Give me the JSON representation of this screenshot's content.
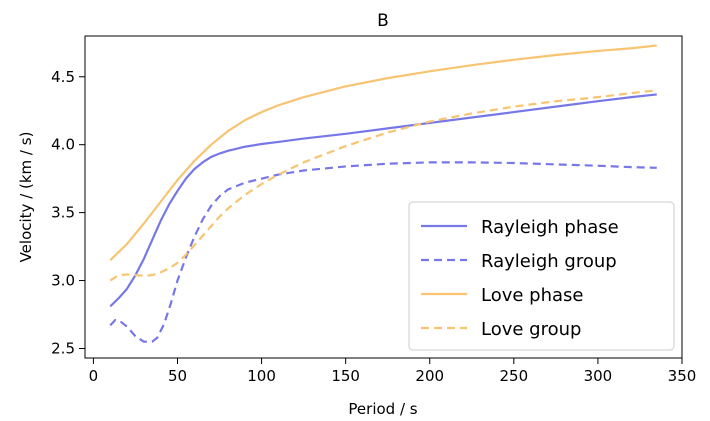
{
  "chart_data": {
    "type": "line",
    "title": "B",
    "xlabel": "Period / s",
    "ylabel": "Velocity / (km / s)",
    "xlim": [
      -5,
      350
    ],
    "ylim": [
      2.43,
      4.8
    ],
    "xticks": [
      0,
      50,
      100,
      150,
      200,
      250,
      300,
      350
    ],
    "yticks": [
      2.5,
      3.0,
      3.5,
      4.0,
      4.5
    ],
    "ytick_labels": [
      "2.5",
      "3.0",
      "3.5",
      "4.0",
      "4.5"
    ],
    "grid": false,
    "legend_position": "lower-right",
    "series": [
      {
        "name": "Rayleigh phase",
        "color": "#7777e8",
        "dash": "solid",
        "x": [
          10,
          15,
          20,
          25,
          30,
          35,
          40,
          45,
          50,
          55,
          60,
          65,
          70,
          75,
          80,
          85,
          90,
          100,
          110,
          125,
          150,
          175,
          200,
          225,
          250,
          275,
          300,
          320,
          335
        ],
        "y": [
          2.81,
          2.87,
          2.94,
          3.04,
          3.16,
          3.3,
          3.44,
          3.56,
          3.66,
          3.75,
          3.82,
          3.87,
          3.91,
          3.935,
          3.955,
          3.97,
          3.985,
          4.005,
          4.02,
          4.045,
          4.08,
          4.12,
          4.16,
          4.2,
          4.24,
          4.28,
          4.32,
          4.35,
          4.37
        ]
      },
      {
        "name": "Rayleigh group",
        "color": "#7777e8",
        "dash": "dashed",
        "x": [
          10,
          13,
          16,
          20,
          25,
          30,
          35,
          38,
          42,
          46,
          50,
          55,
          60,
          65,
          70,
          75,
          80,
          90,
          100,
          110,
          125,
          150,
          175,
          200,
          225,
          250,
          275,
          300,
          320,
          335
        ],
        "y": [
          2.67,
          2.71,
          2.7,
          2.66,
          2.59,
          2.55,
          2.55,
          2.58,
          2.68,
          2.83,
          3.0,
          3.17,
          3.32,
          3.45,
          3.55,
          3.62,
          3.67,
          3.72,
          3.75,
          3.78,
          3.81,
          3.84,
          3.86,
          3.87,
          3.87,
          3.865,
          3.855,
          3.845,
          3.835,
          3.83
        ]
      },
      {
        "name": "Love phase",
        "color": "#f8c472",
        "dash": "solid",
        "x": [
          10,
          20,
          30,
          40,
          50,
          60,
          70,
          80,
          90,
          100,
          110,
          125,
          150,
          175,
          200,
          225,
          250,
          275,
          300,
          320,
          335
        ],
        "y": [
          3.15,
          3.27,
          3.42,
          3.58,
          3.74,
          3.88,
          4.0,
          4.1,
          4.18,
          4.24,
          4.29,
          4.35,
          4.43,
          4.49,
          4.54,
          4.585,
          4.625,
          4.66,
          4.69,
          4.71,
          4.73
        ]
      },
      {
        "name": "Love group",
        "color": "#f8c472",
        "dash": "dashed",
        "x": [
          10,
          15,
          20,
          25,
          30,
          35,
          40,
          45,
          50,
          55,
          60,
          65,
          70,
          75,
          80,
          90,
          100,
          110,
          125,
          150,
          175,
          200,
          225,
          250,
          275,
          300,
          320,
          335
        ],
        "y": [
          3.0,
          3.04,
          3.045,
          3.04,
          3.035,
          3.04,
          3.06,
          3.09,
          3.13,
          3.19,
          3.26,
          3.33,
          3.4,
          3.47,
          3.53,
          3.63,
          3.71,
          3.78,
          3.87,
          3.99,
          4.09,
          4.17,
          4.23,
          4.28,
          4.32,
          4.35,
          4.38,
          4.4
        ]
      }
    ]
  }
}
